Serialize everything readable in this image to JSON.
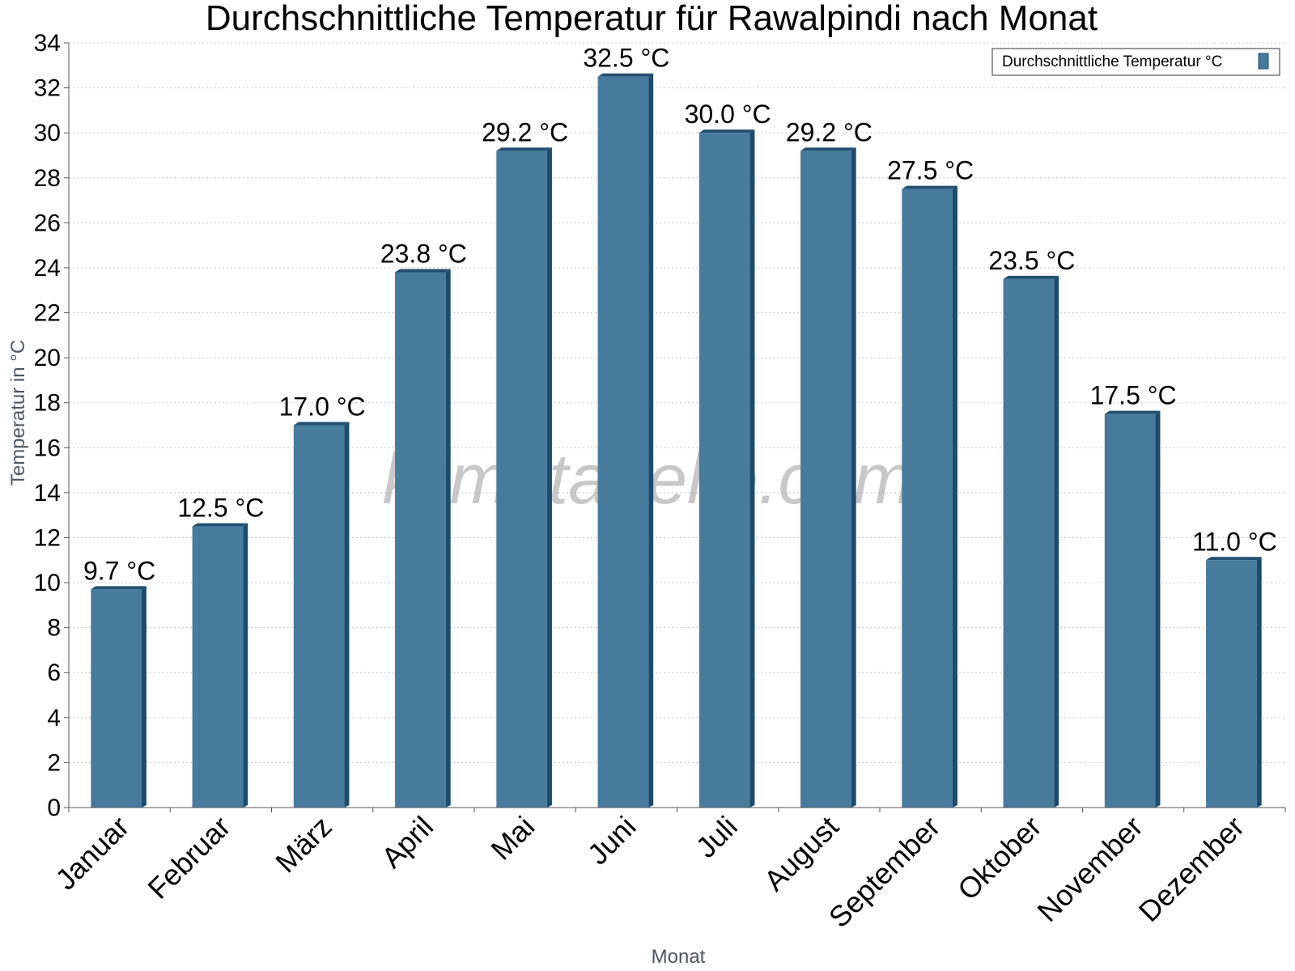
{
  "colors": {
    "bar_front": "#477b9e",
    "bar_side": "#1e4b6b",
    "bar_top": "#234f70",
    "grid": "#c8c8c8",
    "axis": "#555555"
  },
  "watermark": "klimatabelle.com",
  "legend": {
    "label": "Durchschnittliche Temperatur °C",
    "placement": "top-right"
  },
  "chart_data": {
    "type": "bar",
    "title": "Durchschnittliche Temperatur für Rawalpindi nach Monat",
    "xlabel": "Monat",
    "ylabel": "Temperatur in °C",
    "categories": [
      "Januar",
      "Februar",
      "März",
      "April",
      "Mai",
      "Juni",
      "Juli",
      "August",
      "September",
      "Oktober",
      "November",
      "Dezember"
    ],
    "series": [
      {
        "name": "Durchschnittliche Temperatur °C",
        "values": [
          9.7,
          12.5,
          17.0,
          23.8,
          29.2,
          32.5,
          30.0,
          29.2,
          27.5,
          23.5,
          17.5,
          11.0
        ],
        "labels": [
          "9.7 °C",
          "12.5 °C",
          "17.0 °C",
          "23.8 °C",
          "29.2 °C",
          "32.5 °C",
          "30.0 °C",
          "29.2 °C",
          "27.5 °C",
          "23.5 °C",
          "17.5 °C",
          "11.0 °C"
        ]
      }
    ],
    "ylim": [
      0,
      34
    ],
    "yticks": [
      "0",
      "2",
      "4",
      "6",
      "8",
      "10",
      "12",
      "14",
      "16",
      "18",
      "20",
      "22",
      "24",
      "26",
      "28",
      "30",
      "32",
      "34"
    ],
    "grid": true
  }
}
